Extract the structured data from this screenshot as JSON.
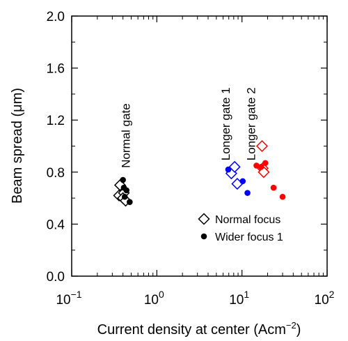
{
  "chart_data": {
    "type": "scatter",
    "xlabel": "Current density at center (Acm",
    "xlabel_sup": "−2",
    "xlabel_close": ")",
    "ylabel": "Beam spread (μm)",
    "xscale": "log",
    "xlim": [
      0.1,
      100
    ],
    "ylim": [
      0.0,
      2.0
    ],
    "grid": false,
    "legend_position": "bottom-right",
    "x_ticks": [
      {
        "value": 0.1,
        "base": "10",
        "exp": "−1"
      },
      {
        "value": 1,
        "base": "10",
        "exp": "0"
      },
      {
        "value": 10,
        "base": "10",
        "exp": "1"
      },
      {
        "value": 100,
        "base": "10",
        "exp": "2"
      }
    ],
    "y_ticks": [
      {
        "value": 0.0,
        "label": "0.0"
      },
      {
        "value": 0.4,
        "label": "0.4"
      },
      {
        "value": 0.8,
        "label": "0.8"
      },
      {
        "value": 1.2,
        "label": "1.2"
      },
      {
        "value": 1.6,
        "label": "1.6"
      },
      {
        "value": 2.0,
        "label": "2.0"
      }
    ],
    "annotations": [
      {
        "text": "Normal gate",
        "x": 0.48,
        "y": 1.08,
        "rotate": -90
      },
      {
        "text": "Longer gate 1",
        "x": 7.2,
        "y": 1.17,
        "rotate": -90
      },
      {
        "text": "Longer gate 2",
        "x": 14.2,
        "y": 1.17,
        "rotate": -90
      }
    ],
    "legend": [
      {
        "label": "Normal focus",
        "marker": "diamond-open",
        "color": "#000000"
      },
      {
        "label": "Wider focus 1",
        "marker": "circle-filled",
        "color": "#000000"
      }
    ],
    "series": [
      {
        "marker": "diamond-open",
        "color": "#000000",
        "points": [
          [
            0.37,
            0.7
          ],
          [
            0.36,
            0.62
          ],
          [
            0.41,
            0.64
          ],
          [
            0.4,
            0.6
          ],
          [
            0.43,
            0.58
          ]
        ]
      },
      {
        "marker": "circle-filled",
        "color": "#000000",
        "points": [
          [
            0.4,
            0.74
          ],
          [
            0.41,
            0.68
          ],
          [
            0.44,
            0.66
          ],
          [
            0.42,
            0.61
          ],
          [
            0.48,
            0.57
          ]
        ]
      },
      {
        "marker": "diamond-open",
        "color": "#0000ff",
        "points": [
          [
            7.5,
            0.79
          ],
          [
            8.2,
            0.84
          ],
          [
            8.8,
            0.71
          ]
        ]
      },
      {
        "marker": "circle-filled",
        "color": "#0000ff",
        "points": [
          [
            6.9,
            0.82
          ],
          [
            10.2,
            0.73
          ],
          [
            11.6,
            0.64
          ]
        ]
      },
      {
        "marker": "diamond-open",
        "color": "#ff0000",
        "points": [
          [
            17.2,
            1.0
          ],
          [
            17.5,
            0.83
          ],
          [
            18.0,
            0.8
          ]
        ]
      },
      {
        "marker": "circle-filled",
        "color": "#ff0000",
        "points": [
          [
            14.8,
            0.85
          ],
          [
            16.8,
            0.84
          ],
          [
            18.8,
            0.87
          ],
          [
            23.5,
            0.68
          ],
          [
            30.0,
            0.61
          ]
        ]
      }
    ]
  }
}
